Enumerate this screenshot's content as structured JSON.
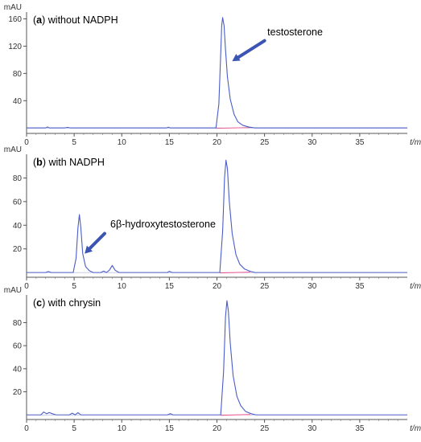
{
  "chart_data": [
    {
      "type": "line",
      "panel_prefix": "(",
      "panel_letter": "a",
      "panel_rest": ") without NADPH",
      "ylabel": "mAU",
      "xlabel": "t/min",
      "xlim": [
        0,
        40
      ],
      "ylim": [
        -8,
        170
      ],
      "x_ticks": [
        "0",
        "5",
        "10",
        "15",
        "20",
        "25",
        "30",
        "35"
      ],
      "x_tick_values": [
        0,
        5,
        10,
        15,
        20,
        25,
        30,
        35
      ],
      "y_ticks": [
        "40",
        "80",
        "120",
        "160"
      ],
      "y_tick_values": [
        40,
        80,
        120,
        160
      ],
      "color": "#4a5cc8",
      "baseline_color": "#e8508a",
      "series": [
        {
          "x": [
            0,
            2,
            2.2,
            2.4,
            4,
            4.3,
            4.6,
            14.7,
            14.9,
            15.1,
            19.9,
            20.2,
            20.4,
            20.5,
            20.6,
            20.75,
            20.9,
            21.1,
            21.4,
            21.8,
            22.2,
            22.7,
            23.3,
            24,
            40
          ],
          "y": [
            0,
            0,
            1.5,
            0,
            0,
            0.8,
            0,
            0,
            1.2,
            0,
            0,
            35,
            110,
            150,
            162,
            150,
            115,
            75,
            42,
            20,
            9,
            4,
            1.5,
            0,
            0
          ]
        }
      ],
      "annotations": [
        {
          "text": "testosterone",
          "x": 25.3,
          "y": 136,
          "arrow_from": [
            25.0,
            128
          ],
          "arrow_to": [
            21.6,
            98
          ]
        }
      ]
    },
    {
      "type": "line",
      "panel_prefix": "(",
      "panel_letter": "b",
      "panel_rest": ") with NADPH",
      "ylabel": "mAU",
      "xlabel": "t/min",
      "xlim": [
        0,
        40
      ],
      "ylim": [
        -4,
        100
      ],
      "x_ticks": [
        "0",
        "5",
        "10",
        "15",
        "20",
        "25",
        "30",
        "35"
      ],
      "x_tick_values": [
        0,
        5,
        10,
        15,
        20,
        25,
        30,
        35
      ],
      "y_ticks": [
        "20",
        "40",
        "60",
        "80"
      ],
      "y_tick_values": [
        20,
        40,
        60,
        80
      ],
      "color": "#4a5cc8",
      "baseline_color": "#e8508a",
      "series": [
        {
          "x": [
            0,
            2,
            2.3,
            2.6,
            4.9,
            5.2,
            5.4,
            5.55,
            5.7,
            5.9,
            6.2,
            6.6,
            7,
            7.8,
            8.1,
            8.4,
            8.7,
            9,
            9.3,
            9.7,
            14.8,
            15,
            15.3,
            20.3,
            20.6,
            20.8,
            20.95,
            21.1,
            21.3,
            21.6,
            22,
            22.4,
            22.9,
            23.5,
            24,
            40
          ],
          "y": [
            0,
            0,
            0.8,
            0,
            0,
            12,
            38,
            49,
            38,
            16,
            5,
            1.5,
            0,
            0,
            1.2,
            0,
            2,
            6,
            2,
            0,
            0,
            1,
            0,
            0,
            35,
            80,
            95,
            88,
            60,
            33,
            15,
            7,
            3,
            1,
            0,
            0
          ]
        }
      ],
      "annotations": [
        {
          "text": "6β-hydroxytestosterone",
          "x": 8.8,
          "y": 38,
          "arrow_from": [
            8.2,
            33
          ],
          "arrow_to": [
            6.1,
            16
          ]
        }
      ]
    },
    {
      "type": "line",
      "panel_prefix": "(",
      "panel_letter": "c",
      "panel_rest": ") with chrysin",
      "ylabel": "mAU",
      "xlabel": "t/min",
      "xlim": [
        0,
        40
      ],
      "ylim": [
        -4,
        104
      ],
      "x_ticks": [
        "0",
        "5",
        "10",
        "15",
        "20",
        "25",
        "30",
        "35"
      ],
      "x_tick_values": [
        0,
        5,
        10,
        15,
        20,
        25,
        30,
        35
      ],
      "y_ticks": [
        "20",
        "40",
        "60",
        "80"
      ],
      "y_tick_values": [
        20,
        40,
        60,
        80
      ],
      "color": "#4a5cc8",
      "baseline_color": "#e8508a",
      "series": [
        {
          "x": [
            0,
            1.5,
            1.8,
            2.1,
            2.4,
            2.7,
            3.1,
            4.5,
            4.8,
            5.1,
            5.4,
            5.7,
            14.8,
            15.1,
            15.4,
            20.4,
            20.7,
            20.9,
            21.05,
            21.2,
            21.4,
            21.7,
            22.1,
            22.5,
            23,
            23.6,
            24.1,
            40
          ],
          "y": [
            0,
            0,
            2.5,
            1,
            2,
            1,
            0,
            0,
            1.5,
            0,
            2,
            0,
            0,
            1,
            0,
            0,
            38,
            85,
            99,
            90,
            62,
            34,
            16,
            8,
            3,
            1,
            0,
            0
          ]
        }
      ],
      "annotations": []
    }
  ]
}
